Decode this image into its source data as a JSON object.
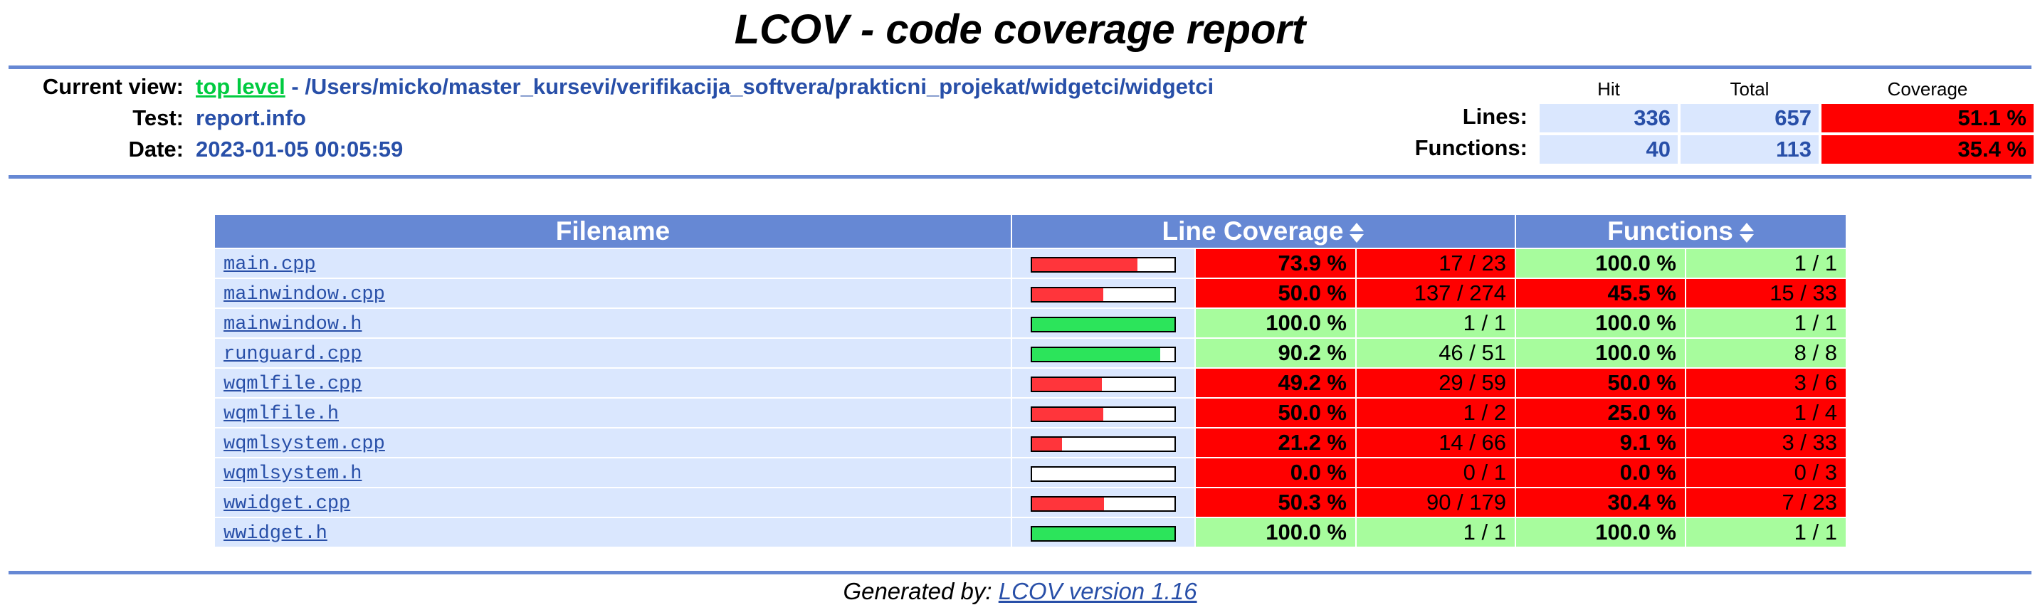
{
  "title": "LCOV - code coverage report",
  "header": {
    "current_view_label": "Current view:",
    "current_view_link": "top level",
    "current_view_path": " - /Users/micko/master_kursevi/verifikacija_softvera/prakticni_projekat/widgetci/widgetci",
    "test_label": "Test:",
    "test_value": "report.info",
    "date_label": "Date:",
    "date_value": "2023-01-05 00:05:59"
  },
  "summary": {
    "hit_label": "Hit",
    "total_label": "Total",
    "coverage_label": "Coverage",
    "lines_label": "Lines:",
    "lines_hit": "336",
    "lines_total": "657",
    "lines_coverage": "51.1 %",
    "functions_label": "Functions:",
    "functions_hit": "40",
    "functions_total": "113",
    "functions_coverage": "35.4 %"
  },
  "table": {
    "headers": {
      "filename": "Filename",
      "line_coverage": "Line Coverage",
      "functions": "Functions"
    },
    "rows": [
      {
        "file": "main.cpp",
        "bar": 73.9,
        "line_pct": "73.9 %",
        "line_cnt": "17 / 23",
        "func_pct": "100.0 %",
        "func_cnt": "1 / 1",
        "line_ok": false,
        "func_ok": true
      },
      {
        "file": "mainwindow.cpp",
        "bar": 50.0,
        "line_pct": "50.0 %",
        "line_cnt": "137 / 274",
        "func_pct": "45.5 %",
        "func_cnt": "15 / 33",
        "line_ok": false,
        "func_ok": false
      },
      {
        "file": "mainwindow.h",
        "bar": 100.0,
        "line_pct": "100.0 %",
        "line_cnt": "1 / 1",
        "func_pct": "100.0 %",
        "func_cnt": "1 / 1",
        "line_ok": true,
        "func_ok": true
      },
      {
        "file": "runguard.cpp",
        "bar": 90.2,
        "line_pct": "90.2 %",
        "line_cnt": "46 / 51",
        "func_pct": "100.0 %",
        "func_cnt": "8 / 8",
        "line_ok": true,
        "func_ok": true
      },
      {
        "file": "wqmlfile.cpp",
        "bar": 49.2,
        "line_pct": "49.2 %",
        "line_cnt": "29 / 59",
        "func_pct": "50.0 %",
        "func_cnt": "3 / 6",
        "line_ok": false,
        "func_ok": false
      },
      {
        "file": "wqmlfile.h",
        "bar": 50.0,
        "line_pct": "50.0 %",
        "line_cnt": "1 / 2",
        "func_pct": "25.0 %",
        "func_cnt": "1 / 4",
        "line_ok": false,
        "func_ok": false
      },
      {
        "file": "wqmlsystem.cpp",
        "bar": 21.2,
        "line_pct": "21.2 %",
        "line_cnt": "14 / 66",
        "func_pct": "9.1 %",
        "func_cnt": "3 / 33",
        "line_ok": false,
        "func_ok": false
      },
      {
        "file": "wqmlsystem.h",
        "bar": 0.0,
        "line_pct": "0.0 %",
        "line_cnt": "0 / 1",
        "func_pct": "0.0 %",
        "func_cnt": "0 / 3",
        "line_ok": false,
        "func_ok": false
      },
      {
        "file": "wwidget.cpp",
        "bar": 50.3,
        "line_pct": "50.3 %",
        "line_cnt": "90 / 179",
        "func_pct": "30.4 %",
        "func_cnt": "7 / 23",
        "line_ok": false,
        "func_ok": false
      },
      {
        "file": "wwidget.h",
        "bar": 100.0,
        "line_pct": "100.0 %",
        "line_cnt": "1 / 1",
        "func_pct": "100.0 %",
        "func_cnt": "1 / 1",
        "line_ok": true,
        "func_ok": true
      }
    ]
  },
  "footer": {
    "generated_label": "Generated by: ",
    "generator_link": "LCOV version 1.16"
  },
  "colors": {
    "rule": "#6688d4",
    "header_bg": "#6688d4",
    "file_bg": "#dae7fe",
    "low_coverage": "#ff0000",
    "high_coverage": "#a7fc9d",
    "bar_low": "#ff353b",
    "bar_high": "#2ce45b",
    "link": "#284fa8",
    "top_level_link": "#00cb40"
  },
  "icons": {
    "sort": "sort-updown-icon"
  }
}
